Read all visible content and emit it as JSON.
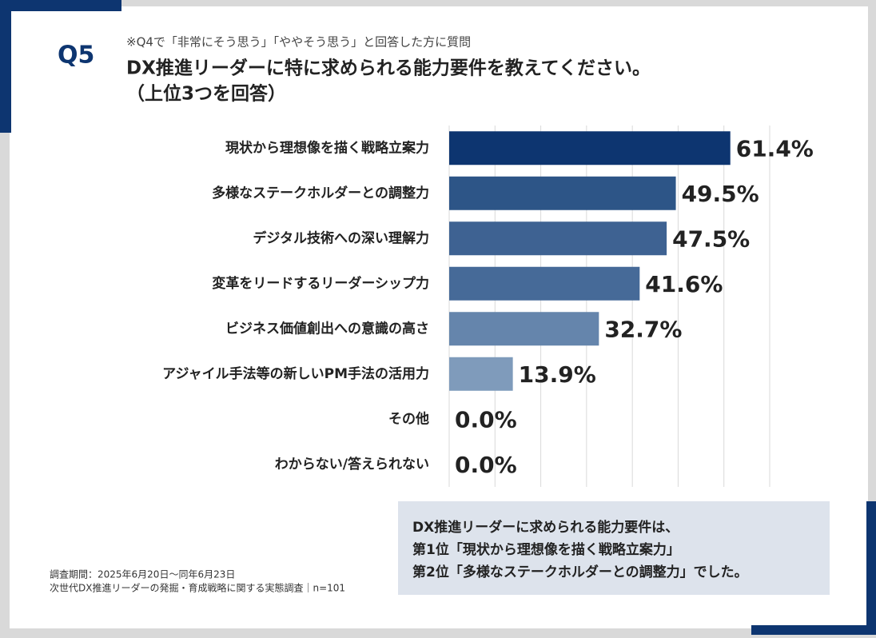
{
  "chart_data": {
    "type": "bar",
    "orientation": "horizontal",
    "question_number": "Q5",
    "subtitle": "※Q4で「非常にそう思う」「ややそう思う」と回答した方に質問",
    "title_lines": [
      "DX推進リーダーに特に求められる能力要件を教えてください。",
      "（上位3つを回答）"
    ],
    "categories": [
      "現状から理想像を描く戦略立案力",
      "多様なステークホルダーとの調整力",
      "デジタル技術への深い理解力",
      "変革をリードするリーダーシップ力",
      "ビジネス価値創出への意識の高さ",
      "アジャイル手法等の新しいPM手法の活用力",
      "その他",
      "わからない/答えられない"
    ],
    "values": [
      61.4,
      49.5,
      47.5,
      41.6,
      32.7,
      13.9,
      0.0,
      0.0
    ],
    "value_labels": [
      "61.4%",
      "49.5%",
      "47.5%",
      "41.6%",
      "32.7%",
      "13.9%",
      "0.0%",
      "0.0%"
    ],
    "colors": [
      "#0d3570",
      "#2d5587",
      "#3e6292",
      "#466a98",
      "#6585ac",
      "#7f9bbb",
      "#7f9bbb",
      "#7f9bbb"
    ],
    "xlim": [
      0,
      70
    ],
    "xticks": [
      0,
      10,
      20,
      30,
      40,
      50,
      60,
      70
    ],
    "grid": true,
    "summary_lines": [
      "DX推進リーダーに求められる能力要件は、",
      "第1位「現状から理想像を描く戦略立案力」",
      "第2位「多様なステークホルダーとの調整力」でした。"
    ],
    "footnotes": [
      "調査期間：2025年6月20日〜同年6月23日",
      "次世代DX推進リーダーの発掘・育成戦略に関する実態調査｜n=101"
    ]
  }
}
